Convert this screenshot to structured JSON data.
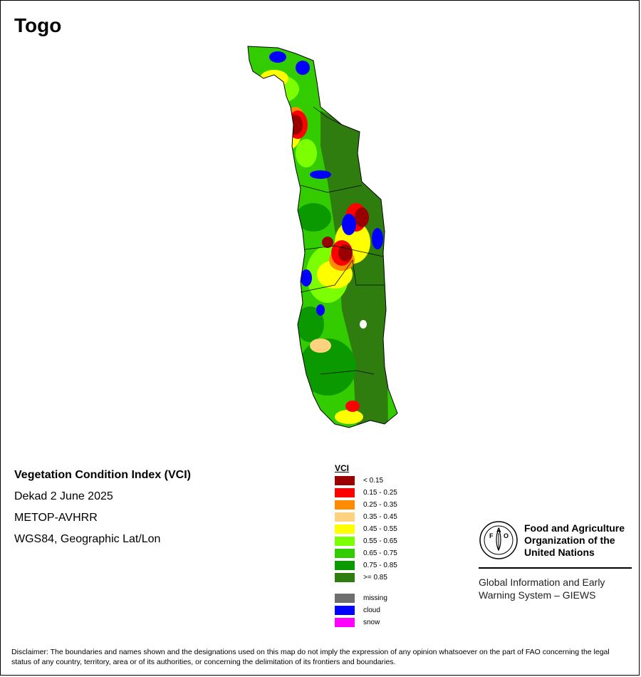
{
  "title": "Togo",
  "info": {
    "index_name": "Vegetation Condition Index (VCI)",
    "period": "Dekad 2 June 2025",
    "sensor": "METOP-AVHRR",
    "projection": "WGS84, Geographic Lat/Lon"
  },
  "legend": {
    "title": "VCI",
    "classes": [
      {
        "label": "< 0.15",
        "color": "#9a0000"
      },
      {
        "label": "0.15 - 0.25",
        "color": "#ff0000"
      },
      {
        "label": "0.25 - 0.35",
        "color": "#ff8c00"
      },
      {
        "label": "0.35 - 0.45",
        "color": "#ffd27f"
      },
      {
        "label": "0.45 - 0.55",
        "color": "#ffff00"
      },
      {
        "label": "0.55 - 0.65",
        "color": "#7cff00"
      },
      {
        "label": "0.65 - 0.75",
        "color": "#33cc00"
      },
      {
        "label": "0.75 - 0.85",
        "color": "#0a9a00"
      },
      {
        "label": ">= 0.85",
        "color": "#2e7d0e"
      }
    ],
    "other": [
      {
        "label": "missing",
        "color": "#6e6e6e"
      },
      {
        "label": "cloud",
        "color": "#0000ff"
      },
      {
        "label": "snow",
        "color": "#ff00ff"
      }
    ]
  },
  "organization": {
    "name_line1": "Food and Agriculture",
    "name_line2": "Organization of the",
    "name_line3": "United Nations",
    "logo_letters": "FAO",
    "logo_motto": "FIAT PANIS",
    "program_line1": "Global Information and Early",
    "program_line2": "Warning System – GIEWS"
  },
  "disclaimer": "Disclaimer: The boundaries and names shown and the designations used on this map do not imply the expression of any opinion whatsoever on the part of FAO concerning the legal status of any country, territory, area or of its authorities, or concerning the delimitation of its frontiers and boundaries."
}
